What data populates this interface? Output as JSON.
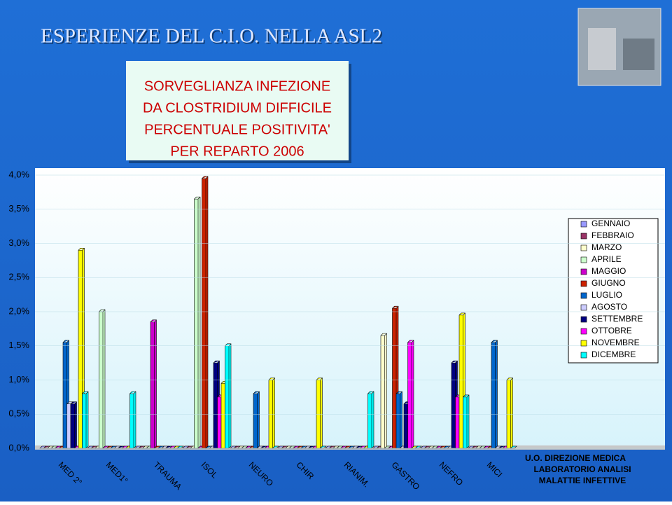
{
  "slide": {
    "header": "ESPERIENZE DEL C.I.O. NELLA ASL2",
    "footer": [
      "U.O. DIREZIONE MEDICA",
      "LABORATORIO ANALISI",
      "MALATTIE INFETTIVE"
    ]
  },
  "chart_data": {
    "type": "bar",
    "title": [
      "SORVEGLIANZA INFEZIONE",
      "DA CLOSTRIDIUM DIFFICILE",
      "PERCENTUALE POSITIVITA'",
      "PER REPARTO 2006"
    ],
    "categories": [
      "MED 2°",
      "MED1°",
      "TRAUMA",
      "ISOL",
      "NEURO",
      "CHIR",
      "RIANIM.",
      "GASTRO",
      "NEFRO",
      "MICI"
    ],
    "ylim": [
      0,
      4
    ],
    "yticks": [
      {
        "value": 0,
        "label": "0,0%"
      },
      {
        "value": 0.5,
        "label": "0,5%"
      },
      {
        "value": 1,
        "label": "1,0%"
      },
      {
        "value": 1.5,
        "label": "1,5%"
      },
      {
        "value": 2,
        "label": "2,0%"
      },
      {
        "value": 2.5,
        "label": "2,5%"
      },
      {
        "value": 3,
        "label": "3,0%"
      },
      {
        "value": 3.5,
        "label": "3,5%"
      },
      {
        "value": 4,
        "label": "4,0%"
      }
    ],
    "grid": true,
    "legend": "right",
    "series": [
      {
        "name": "GENNAIO",
        "color": "#9999ff",
        "values": [
          0,
          0,
          0,
          0,
          0,
          0,
          0,
          0,
          0,
          0
        ]
      },
      {
        "name": "FEBBRAIO",
        "color": "#993366",
        "values": [
          0,
          0,
          0,
          0,
          0,
          0,
          0,
          0,
          0,
          0
        ]
      },
      {
        "name": "MARZO",
        "color": "#ffffcc",
        "values": [
          0,
          0,
          0,
          0,
          0,
          0,
          0,
          1.65,
          0,
          0
        ]
      },
      {
        "name": "APRILE",
        "color": "#ccffcc",
        "values": [
          0,
          2,
          0,
          3.65,
          0,
          0,
          0,
          0,
          0,
          0
        ]
      },
      {
        "name": "MAGGIO",
        "color": "#cc00cc",
        "values": [
          0,
          0,
          1.85,
          0,
          0,
          0,
          0,
          0,
          0,
          0
        ]
      },
      {
        "name": "GIUGNO",
        "color": "#cc2200",
        "values": [
          0,
          0,
          0,
          3.95,
          0,
          0,
          0,
          2.05,
          0,
          0
        ]
      },
      {
        "name": "LUGLIO",
        "color": "#0066cc",
        "values": [
          1.55,
          0,
          0,
          0,
          0.8,
          0,
          0,
          0.8,
          0,
          1.55
        ]
      },
      {
        "name": "AGOSTO",
        "color": "#ccccff",
        "values": [
          0.65,
          0,
          0,
          0,
          0,
          0,
          0,
          0,
          0,
          0
        ]
      },
      {
        "name": "SETTEMBRE",
        "color": "#000080",
        "values": [
          0.65,
          0,
          0,
          1.25,
          0,
          0,
          0,
          0.65,
          1.25,
          0
        ]
      },
      {
        "name": "OTTOBRE",
        "color": "#ff00ff",
        "values": [
          0,
          0,
          0,
          0.75,
          0,
          0,
          0,
          1.55,
          0.75,
          0
        ]
      },
      {
        "name": "NOVEMBRE",
        "color": "#ffff00",
        "values": [
          2.9,
          0,
          0,
          0.95,
          1,
          1,
          0,
          0,
          1.95,
          1
        ]
      },
      {
        "name": "DICEMBRE",
        "color": "#00ffff",
        "values": [
          0.8,
          0.8,
          0,
          1.5,
          0,
          0,
          0.8,
          0,
          0.75,
          0
        ]
      }
    ]
  }
}
